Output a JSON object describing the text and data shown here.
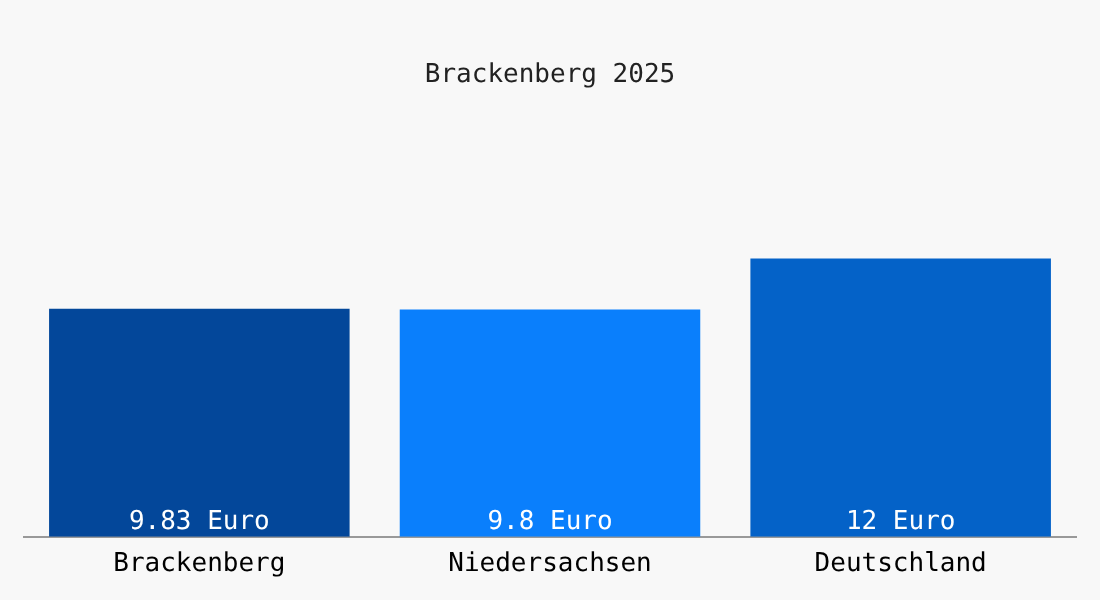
{
  "chart_data": {
    "type": "bar",
    "title": "Brackenberg 2025",
    "categories": [
      "Brackenberg",
      "Niedersachsen",
      "Deutschland"
    ],
    "values": [
      9.83,
      9.8,
      12
    ],
    "colors": [
      "#03479a",
      "#0a7ffc",
      "#0462c8"
    ],
    "value_labels": [
      "9.83 Euro",
      "9.8 Euro",
      "12 Euro"
    ],
    "tick_labels": "x",
    "grid": false,
    "legend": false
  }
}
